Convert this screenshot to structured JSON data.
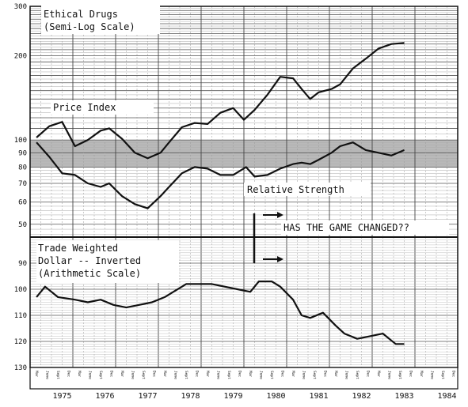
{
  "chart_data": [
    {
      "type": "line",
      "title": "Ethical Drugs",
      "subtitle": "(Semi-Log Scale)",
      "scale": "log",
      "y_ticks": [
        300,
        200,
        100,
        90,
        80,
        70,
        60,
        50
      ],
      "ylim": [
        45,
        300
      ],
      "x_years": [
        "1975",
        "1976",
        "1977",
        "1978",
        "1979",
        "1980",
        "1981",
        "1982",
        "1983",
        "1984"
      ],
      "x_months": [
        "Mar",
        "June",
        "Sept",
        "Dec"
      ],
      "xlim": [
        1974.75,
        1984.75
      ],
      "shaded_band": [
        80,
        100
      ],
      "annotation": "HAS THE GAME CHANGED??",
      "series": [
        {
          "name": "Price Index",
          "x": [
            1974.9,
            1975.2,
            1975.5,
            1975.8,
            1976.1,
            1976.4,
            1976.6,
            1976.9,
            1977.2,
            1977.5,
            1977.8,
            1978.0,
            1978.3,
            1978.6,
            1978.9,
            1979.2,
            1979.5,
            1979.75,
            1980.0,
            1980.3,
            1980.6,
            1980.9,
            1981.1,
            1981.3,
            1981.5,
            1981.8,
            1982.0,
            1982.3,
            1982.6,
            1982.9,
            1983.2,
            1983.5
          ],
          "values": [
            102,
            112,
            116,
            95,
            100,
            108,
            110,
            101,
            90,
            86,
            90,
            98,
            111,
            115,
            114,
            125,
            130,
            118,
            128,
            145,
            168,
            166,
            152,
            140,
            148,
            152,
            158,
            180,
            195,
            212,
            220,
            222
          ]
        },
        {
          "name": "Relative Strength",
          "x": [
            1974.9,
            1975.2,
            1975.5,
            1975.8,
            1976.1,
            1976.4,
            1976.6,
            1976.9,
            1977.2,
            1977.5,
            1977.8,
            1978.0,
            1978.3,
            1978.6,
            1978.9,
            1979.2,
            1979.5,
            1979.8,
            1980.0,
            1980.3,
            1980.6,
            1980.9,
            1981.1,
            1981.3,
            1981.5,
            1981.8,
            1982.0,
            1982.3,
            1982.6,
            1982.9,
            1983.2,
            1983.5
          ],
          "values": [
            98,
            87,
            76,
            75,
            70,
            68,
            70,
            63,
            59,
            57,
            63,
            68,
            76,
            80,
            79,
            75,
            75,
            80,
            74,
            75,
            79,
            82,
            83,
            82,
            85,
            90,
            95,
            98,
            92,
            90,
            88,
            92
          ]
        }
      ]
    },
    {
      "type": "line",
      "title": "Trade Weighted",
      "subtitle": "Dollar -- Inverted",
      "subtitle2": "(Arithmetic Scale)",
      "scale": "linear-inverted",
      "y_ticks": [
        90,
        100,
        110,
        120,
        130
      ],
      "ylim": [
        80,
        130
      ],
      "series": [
        {
          "name": "",
          "x": [
            1974.9,
            1975.1,
            1975.4,
            1975.8,
            1976.1,
            1976.4,
            1976.7,
            1977.0,
            1977.3,
            1977.6,
            1977.9,
            1978.1,
            1978.4,
            1978.7,
            1979.0,
            1979.3,
            1979.6,
            1979.9,
            1980.1,
            1980.4,
            1980.6,
            1980.9,
            1981.1,
            1981.3,
            1981.6,
            1981.9,
            1982.1,
            1982.4,
            1982.7,
            1983.0,
            1983.3,
            1983.5
          ],
          "values": [
            103,
            99,
            103,
            104,
            105,
            104,
            106,
            107,
            106,
            105,
            103,
            101,
            98,
            98,
            98,
            99,
            100,
            101,
            97,
            97,
            99,
            104,
            110,
            111,
            109,
            114,
            117,
            119,
            118,
            117,
            121,
            121
          ]
        }
      ]
    }
  ]
}
